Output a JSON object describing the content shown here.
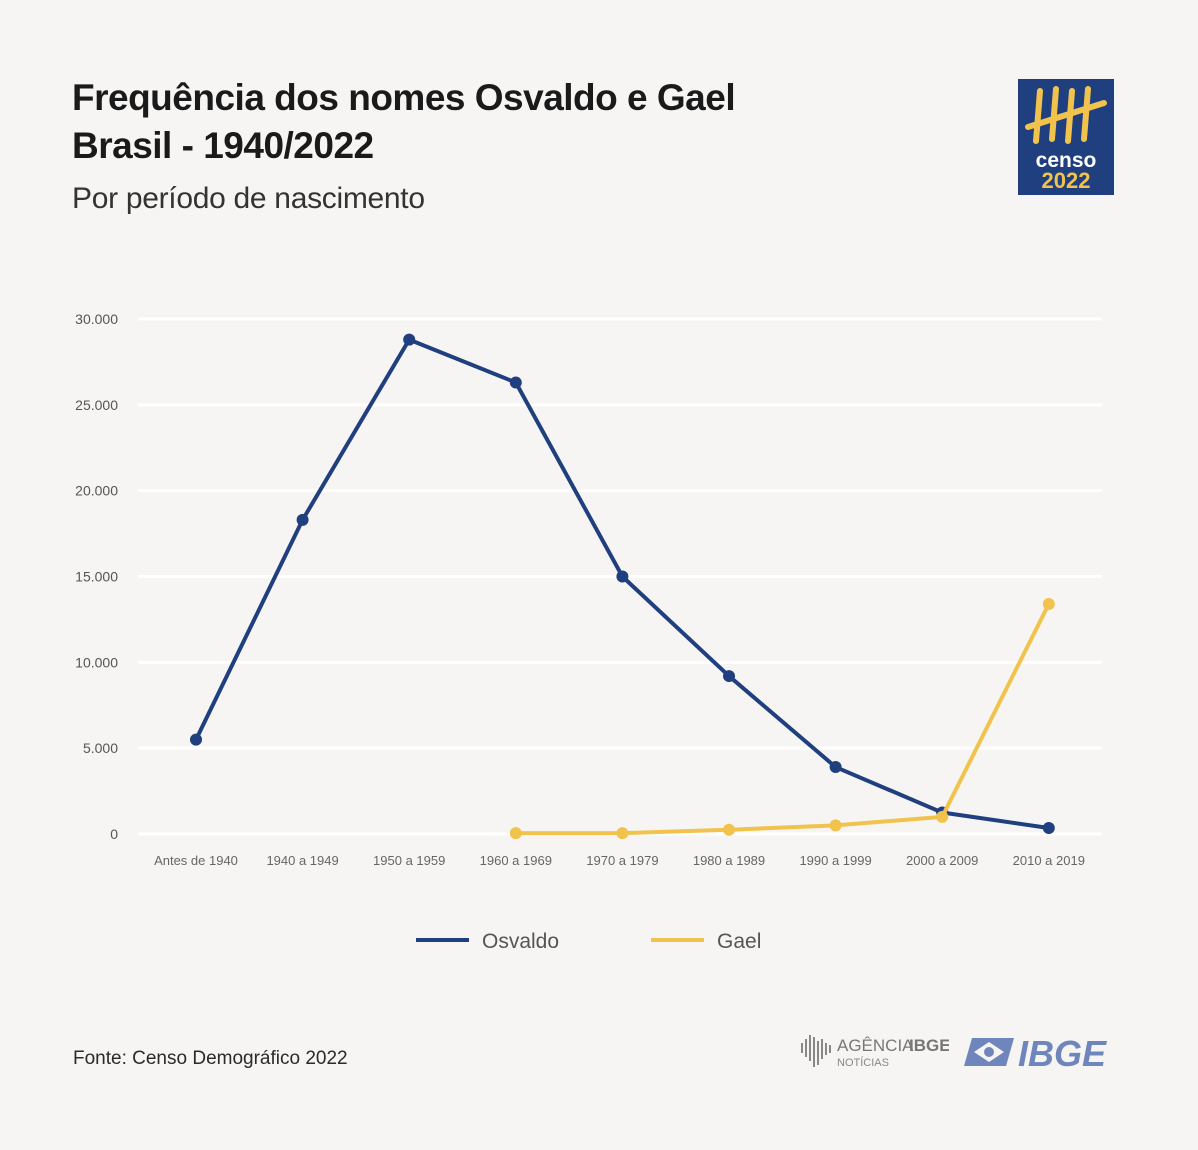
{
  "header": {
    "title_line1": "Frequência dos nomes Osvaldo e Gael",
    "title_line2": "Brasil - 1940/2022",
    "subtitle": "Por período de nascimento"
  },
  "logos": {
    "censo_word": "censo",
    "censo_year": "2022",
    "agencia_line1": "AGÊNCIA",
    "agencia_brand": "IBGE",
    "agencia_line2": "NOTÍCIAS",
    "ibge": "IBGE"
  },
  "footer": {
    "source": "Fonte: Censo Demográfico 2022"
  },
  "chart_data": {
    "type": "line",
    "title": "Frequência dos nomes Osvaldo e Gael",
    "xlabel": "",
    "ylabel": "",
    "ylim": [
      0,
      30000
    ],
    "yticks": [
      0,
      5000,
      10000,
      15000,
      20000,
      25000,
      30000
    ],
    "ytick_labels": [
      "0",
      "5.000",
      "10.000",
      "15.000",
      "20.000",
      "25.000",
      "30.000"
    ],
    "grid": true,
    "legend_position": "bottom-center",
    "categories": [
      "Antes de 1940",
      "1940 a 1949",
      "1950 a 1959",
      "1960 a 1969",
      "1970 a 1979",
      "1980 a 1989",
      "1990 a 1999",
      "2000 a 2009",
      "2010 a 2019"
    ],
    "series": [
      {
        "name": "Osvaldo",
        "color": "#1f3f7e",
        "values": [
          5500,
          18300,
          28800,
          26300,
          15000,
          9200,
          3900,
          1250,
          350
        ]
      },
      {
        "name": "Gael",
        "color": "#f2c34c",
        "values": [
          null,
          null,
          null,
          50,
          50,
          250,
          500,
          1000,
          13400
        ]
      }
    ]
  }
}
